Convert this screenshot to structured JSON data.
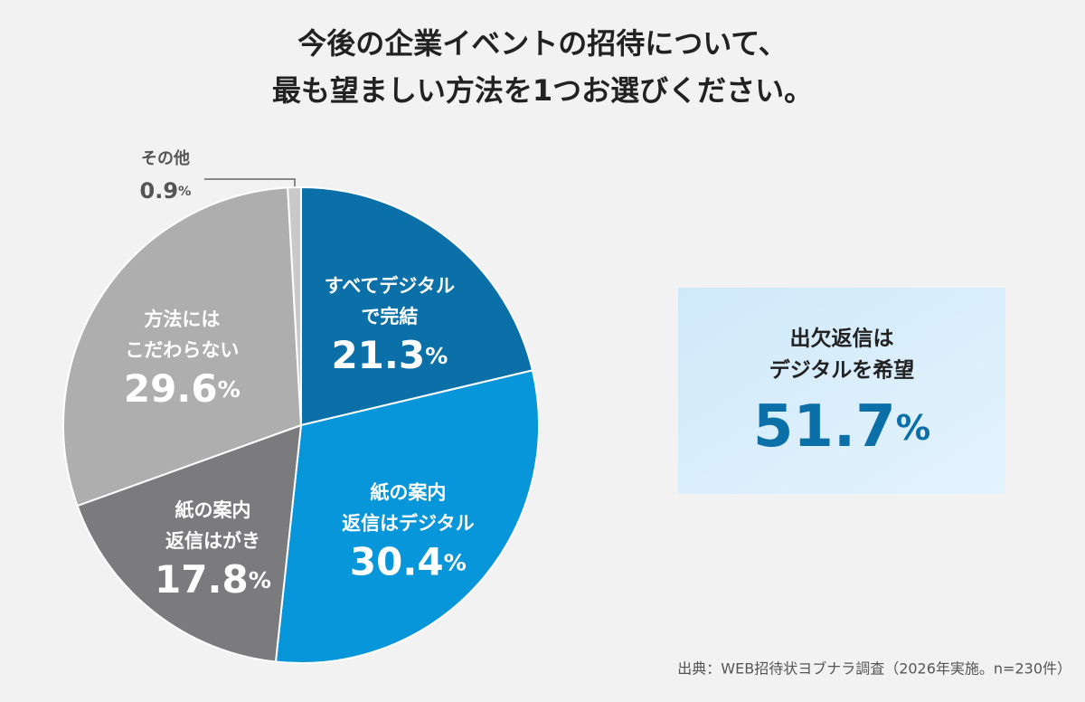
{
  "chart_data": {
    "type": "pie",
    "title": [
      "今後の企業イベントの招待について、",
      "最も望ましい方法を1つお選びください。"
    ],
    "categories": [
      [
        "すべてデジタル",
        "で完結"
      ],
      [
        "紙の案内",
        "返信はデジタル"
      ],
      [
        "紙の案内",
        "返信はがき"
      ],
      [
        "方法には",
        "こだわらない"
      ],
      [
        "その他"
      ]
    ],
    "values": [
      21.3,
      30.4,
      17.8,
      29.6,
      0.9
    ],
    "value_labels": [
      "21.3%",
      "30.4%",
      "17.8%",
      "29.6%",
      "0.9%"
    ],
    "colors": [
      "#0b6fa8",
      "#0796d9",
      "#7b7a7c",
      "#afaeaf",
      "#c9c9c9"
    ],
    "highlight": {
      "label": [
        "出欠返信は",
        "デジタルを希望"
      ],
      "value_label": "51.7%"
    },
    "source": "出典：WEB招待状ヨブナラ調査（2026年実施。n=230件）"
  }
}
